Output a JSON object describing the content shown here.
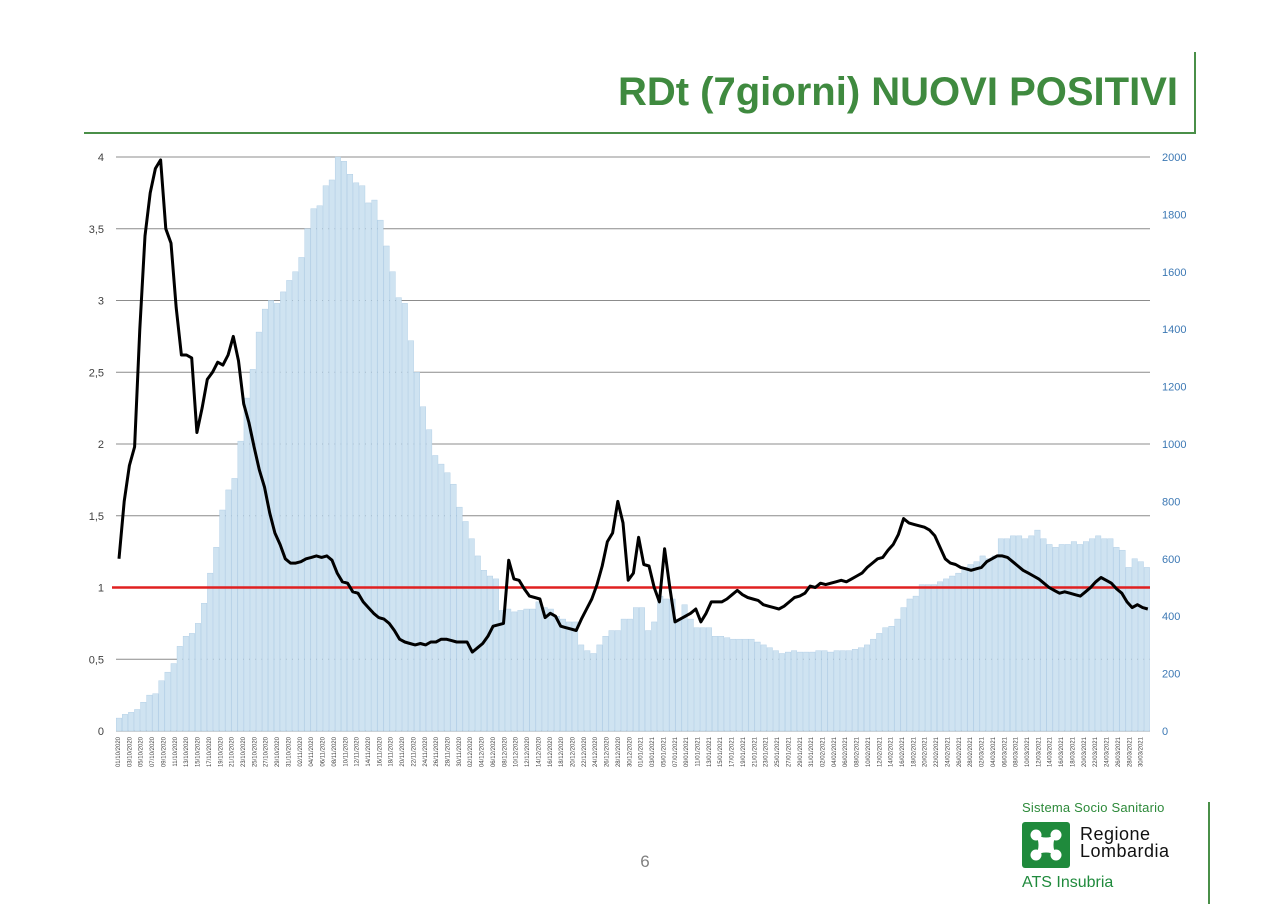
{
  "slide": {
    "title": "RDt (7giorni) NUOVI POSITIVI",
    "page_number": "6",
    "logo": {
      "top_text": "Sistema Socio Sanitario",
      "name": "Regione\nLombardia",
      "bottom_text": "ATS Insubria",
      "icon": "regione-lombardia-rose-icon"
    }
  },
  "chart_data": {
    "type": "bar+line",
    "left_axis": {
      "range": [
        0,
        4
      ],
      "ticks": [
        "0",
        "0,5",
        "1",
        "1,5",
        "2",
        "2,5",
        "3",
        "3,5",
        "4"
      ]
    },
    "right_axis": {
      "range": [
        0,
        2000
      ],
      "ticks": [
        "0",
        "200",
        "400",
        "600",
        "800",
        "1000",
        "1200",
        "1400",
        "1600",
        "1800",
        "2000"
      ]
    },
    "grid": true,
    "threshold": 1,
    "x_labels": [
      "01/10/2020",
      "03/10/2020",
      "05/10/2020",
      "07/10/2020",
      "09/10/2020",
      "11/10/2020",
      "13/10/2020",
      "15/10/2020",
      "17/10/2020",
      "19/10/2020",
      "21/10/2020",
      "23/10/2020",
      "25/10/2020",
      "27/10/2020",
      "29/10/2020",
      "31/10/2020",
      "02/11/2020",
      "04/11/2020",
      "06/11/2020",
      "08/11/2020",
      "10/11/2020",
      "12/11/2020",
      "14/11/2020",
      "16/11/2020",
      "18/11/2020",
      "20/11/2020",
      "22/11/2020",
      "24/11/2020",
      "26/11/2020",
      "28/11/2020",
      "30/11/2020",
      "02/12/2020",
      "04/12/2020",
      "06/12/2020",
      "08/12/2020",
      "10/12/2020",
      "12/12/2020",
      "14/12/2020",
      "16/12/2020",
      "18/12/2020",
      "20/12/2020",
      "22/12/2020",
      "24/12/2020",
      "26/12/2020",
      "28/12/2020",
      "30/12/2020",
      "01/01/2021",
      "03/01/2021",
      "05/01/2021",
      "07/01/2021",
      "09/01/2021",
      "11/01/2021",
      "13/01/2021",
      "15/01/2021",
      "17/01/2021",
      "19/01/2021",
      "21/01/2021",
      "23/01/2021",
      "25/01/2021",
      "27/01/2021",
      "29/01/2021",
      "31/01/2021",
      "02/02/2021",
      "04/02/2021",
      "06/02/2021",
      "08/02/2021",
      "10/02/2021",
      "12/02/2021",
      "14/02/2021",
      "16/02/2021",
      "18/02/2021",
      "20/02/2021",
      "22/02/2021",
      "24/02/2021",
      "26/02/2021",
      "28/02/2021",
      "02/03/2021",
      "04/03/2021",
      "06/03/2021",
      "08/03/2021",
      "10/03/2021",
      "12/03/2021",
      "14/03/2021",
      "16/03/2021",
      "18/03/2021",
      "20/03/2021",
      "22/03/2021",
      "24/03/2021",
      "26/03/2021",
      "28/03/2021",
      "30/03/2021"
    ],
    "series": [
      {
        "axis": "right",
        "kind": "bar",
        "color": "#cfe3f1",
        "edge": "#a9c9e3",
        "values": [
          45,
          58,
          65,
          75,
          100,
          125,
          130,
          175,
          205,
          235,
          295,
          330,
          340,
          375,
          445,
          550,
          640,
          770,
          840,
          880,
          1010,
          1160,
          1260,
          1390,
          1470,
          1500,
          1490,
          1530,
          1570,
          1600,
          1650,
          1750,
          1820,
          1830,
          1900,
          1920,
          2000,
          1985,
          1940,
          1910,
          1900,
          1840,
          1850,
          1780,
          1690,
          1600,
          1510,
          1490,
          1360,
          1250,
          1130,
          1050,
          960,
          930,
          900,
          860,
          780,
          730,
          670,
          610,
          560,
          540,
          530,
          420,
          425,
          415,
          420,
          425,
          425,
          450,
          430,
          425,
          400,
          390,
          380,
          380,
          300,
          280,
          270,
          300,
          330,
          350,
          350,
          390,
          390,
          430,
          430,
          350,
          380,
          470,
          460,
          460,
          390,
          440,
          390,
          360,
          360,
          360,
          330,
          330,
          325,
          320,
          320,
          320,
          320,
          310,
          300,
          290,
          280,
          270,
          275,
          280,
          275,
          275,
          275,
          280,
          280,
          275,
          280,
          280,
          280,
          285,
          290,
          300,
          320,
          340,
          360,
          365,
          390,
          430,
          460,
          470,
          510,
          510,
          510,
          520,
          530,
          540,
          550,
          570,
          580,
          590,
          610,
          600,
          610,
          670,
          670,
          680,
          680,
          670,
          680,
          700,
          670,
          650,
          640,
          650,
          650,
          660,
          650,
          660,
          670,
          680,
          670,
          670,
          640,
          630,
          570,
          600,
          590,
          570
        ]
      },
      {
        "axis": "left",
        "kind": "line",
        "color": "#000000",
        "values": [
          1.2,
          1.6,
          1.85,
          1.98,
          2.8,
          3.45,
          3.75,
          3.92,
          3.98,
          3.5,
          3.4,
          2.95,
          2.62,
          2.62,
          2.6,
          2.08,
          2.25,
          2.45,
          2.5,
          2.57,
          2.55,
          2.62,
          2.75,
          2.58,
          2.28,
          2.15,
          1.98,
          1.82,
          1.7,
          1.52,
          1.38,
          1.3,
          1.2,
          1.17,
          1.17,
          1.18,
          1.2,
          1.21,
          1.22,
          1.21,
          1.22,
          1.19,
          1.1,
          1.04,
          1.03,
          0.97,
          0.96,
          0.9,
          0.86,
          0.82,
          0.79,
          0.78,
          0.75,
          0.7,
          0.64,
          0.62,
          0.61,
          0.6,
          0.61,
          0.6,
          0.62,
          0.62,
          0.64,
          0.64,
          0.63,
          0.62,
          0.62,
          0.62,
          0.55,
          0.58,
          0.61,
          0.66,
          0.73,
          0.74,
          0.75,
          1.19,
          1.06,
          1.05,
          0.99,
          0.94,
          0.93,
          0.92,
          0.79,
          0.82,
          0.8,
          0.73,
          0.72,
          0.71,
          0.7,
          0.78,
          0.85,
          0.92,
          1.02,
          1.15,
          1.32,
          1.38,
          1.6,
          1.45,
          1.05,
          1.1,
          1.35,
          1.16,
          1.15,
          1.0,
          0.9,
          1.27,
          1.0,
          0.76,
          0.78,
          0.8,
          0.82,
          0.85,
          0.76,
          0.82,
          0.9,
          0.9,
          0.9,
          0.92,
          0.95,
          0.98,
          0.95,
          0.93,
          0.92,
          0.91,
          0.88,
          0.87,
          0.86,
          0.85,
          0.87,
          0.9,
          0.93,
          0.94,
          0.96,
          1.01,
          1.0,
          1.03,
          1.02,
          1.03,
          1.04,
          1.05,
          1.04,
          1.06,
          1.08,
          1.1,
          1.14,
          1.17,
          1.2,
          1.21,
          1.26,
          1.3,
          1.37,
          1.48,
          1.45,
          1.44,
          1.43,
          1.42,
          1.4,
          1.36,
          1.28,
          1.2,
          1.17,
          1.16,
          1.14,
          1.13,
          1.12,
          1.13,
          1.14,
          1.18,
          1.2,
          1.22,
          1.22,
          1.21,
          1.18,
          1.15,
          1.12,
          1.1,
          1.08,
          1.06,
          1.03,
          1.0,
          0.98,
          0.96,
          0.97,
          0.96,
          0.95,
          0.94,
          0.97,
          1.0,
          1.04,
          1.07,
          1.05,
          1.03,
          0.99,
          0.96,
          0.9,
          0.86,
          0.88,
          0.86,
          0.85
        ]
      },
      {
        "axis": "left",
        "kind": "reference",
        "color": "#e02020",
        "values": [
          1
        ]
      }
    ]
  }
}
